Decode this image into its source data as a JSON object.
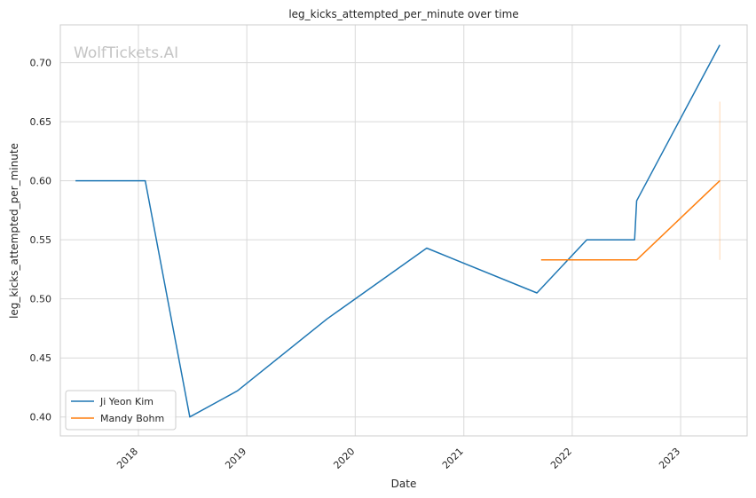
{
  "watermark": "WolfTickets.AI",
  "chart_data": {
    "type": "line",
    "title": "leg_kicks_attempted_per_minute over time",
    "xlabel": "Date",
    "ylabel": "leg_kicks_attempted_per_minute",
    "x_ticks": [
      "2018",
      "2019",
      "2020",
      "2021",
      "2022",
      "2023"
    ],
    "y_ticks": [
      "0.40",
      "0.45",
      "0.50",
      "0.55",
      "0.60",
      "0.65",
      "0.70"
    ],
    "xlim": [
      "2017-04-13",
      "2023-08-13"
    ],
    "ylim": [
      0.384,
      0.732
    ],
    "grid": true,
    "legend_position": "lower-left",
    "series": [
      {
        "name": "Ji Yeon Kim",
        "color": "#1f77b4",
        "points": [
          {
            "x": "2017-06-03",
            "y": 0.6
          },
          {
            "x": "2018-01-24",
            "y": 0.6
          },
          {
            "x": "2018-06-23",
            "y": 0.4
          },
          {
            "x": "2018-11-30",
            "y": 0.422
          },
          {
            "x": "2019-09-28",
            "y": 0.483
          },
          {
            "x": "2020-08-29",
            "y": 0.543
          },
          {
            "x": "2021-09-04",
            "y": 0.505
          },
          {
            "x": "2022-02-19",
            "y": 0.55
          },
          {
            "x": "2022-07-30",
            "y": 0.55
          },
          {
            "x": "2022-08-06",
            "y": 0.583
          },
          {
            "x": "2023-05-13",
            "y": 0.715
          }
        ]
      },
      {
        "name": "Mandy Bohm",
        "color": "#ff7f0e",
        "points": [
          {
            "x": "2021-09-18",
            "y": 0.533
          },
          {
            "x": "2022-08-06",
            "y": 0.533
          },
          {
            "x": "2023-05-13",
            "y": 0.6
          }
        ],
        "error_bar": {
          "x": "2023-05-13",
          "low": 0.533,
          "high": 0.667
        }
      }
    ]
  }
}
